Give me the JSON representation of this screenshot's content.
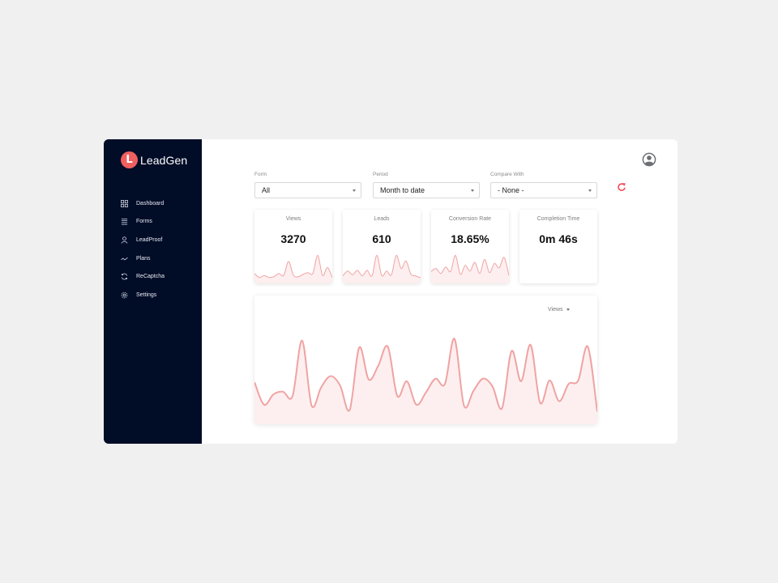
{
  "brand": {
    "logo_letter": "L",
    "name": "LeadGen",
    "color": "#ef5f5f"
  },
  "sidebar": {
    "items": [
      {
        "label": "Dashboard",
        "icon": "grid-icon"
      },
      {
        "label": "Forms",
        "icon": "list-icon"
      },
      {
        "label": "LeadProof",
        "icon": "person-icon"
      },
      {
        "label": "Plans",
        "icon": "trend-icon"
      },
      {
        "label": "ReCaptcha",
        "icon": "refresh-icon"
      },
      {
        "label": "Settings",
        "icon": "gear-icon"
      }
    ]
  },
  "filters": {
    "form": {
      "label": "Form",
      "value": "All"
    },
    "period": {
      "label": "Period",
      "value": "Month to date"
    },
    "compare": {
      "label": "Compare With",
      "value": "- None -"
    }
  },
  "stats": [
    {
      "label": "Views",
      "value": "3270"
    },
    {
      "label": "Leads",
      "value": "610"
    },
    {
      "label": "Conversion Rate",
      "value": "18.65%"
    },
    {
      "label": "Completion Time",
      "value": "0m 46s"
    }
  ],
  "chart": {
    "metric": "Views"
  },
  "chart_data": [
    {
      "type": "area",
      "name": "views-sparkline",
      "values": [
        2,
        1,
        1.5,
        1,
        1.2,
        2,
        1.5,
        5,
        1.6,
        1.2,
        1.8,
        2.2,
        2,
        6.5,
        1.5,
        3.5,
        1
      ]
    },
    {
      "type": "area",
      "name": "leads-sparkline",
      "values": [
        1.5,
        2.8,
        1.8,
        3,
        1.5,
        3,
        1.5,
        7,
        1.6,
        2.8,
        1.8,
        7,
        3.5,
        5.5,
        2,
        1.5,
        1
      ]
    },
    {
      "type": "area",
      "name": "conversion-sparkline",
      "values": [
        2.5,
        3.2,
        2,
        3.6,
        2.5,
        6.5,
        1.8,
        4,
        2.6,
        4.8,
        2,
        5.5,
        2.2,
        4.5,
        3.4,
        6,
        1.5
      ]
    },
    {
      "type": "area",
      "name": "views-chart",
      "values": [
        4.2,
        1.6,
        2.8,
        3.1,
        2.6,
        9,
        1.5,
        3.6,
        4.9,
        3.8,
        1.0,
        8.2,
        4.5,
        6.1,
        8.3,
        2.6,
        4.3,
        1.6,
        3.0,
        4.6,
        4.0,
        9.2,
        1.5,
        3.2,
        4.6,
        3.7,
        1.2,
        7.8,
        4.3,
        8.5,
        1.8,
        4.4,
        2.0,
        4.0,
        4.4,
        8.3,
        0.8
      ]
    }
  ]
}
